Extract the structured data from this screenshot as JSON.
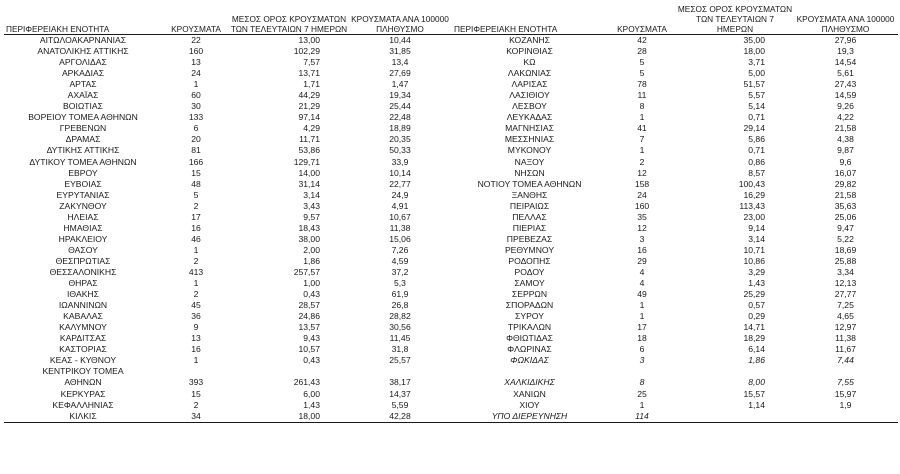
{
  "headers": {
    "region": "ΠΕΡΙΦΕΡΕΙΑΚΗ ΕΝΟΤΗΤΑ",
    "cases": "ΚΡΟΥΣΜΑΤΑ",
    "avg": "ΜΕΣΟΣ ΟΡΟΣ ΚΡΟΥΣΜΑΤΩΝ ΤΩΝ ΤΕΛΕΥΤΑΙΩΝ 7 ΗΜΕΡΩΝ",
    "per100k": "ΚΡΟΥΣΜΑΤΑ ΑΝΑ 100000 ΠΛΗΘΥΣΜΟ"
  },
  "left_rows": [
    {
      "name": "ΑΙΤΩΛΟΑΚΑΡΝΑΝΙΑΣ",
      "cases": "22",
      "avg": "13,00",
      "per100k": "10,44"
    },
    {
      "name": "ΑΝΑΤΟΛΙΚΗΣ ΑΤΤΙΚΗΣ",
      "cases": "160",
      "avg": "102,29",
      "per100k": "31,85"
    },
    {
      "name": "ΑΡΓΟΛΙΔΑΣ",
      "cases": "13",
      "avg": "7,57",
      "per100k": "13,4"
    },
    {
      "name": "ΑΡΚΑΔΙΑΣ",
      "cases": "24",
      "avg": "13,71",
      "per100k": "27,69"
    },
    {
      "name": "ΑΡΤΑΣ",
      "cases": "1",
      "avg": "1,71",
      "per100k": "1,47"
    },
    {
      "name": "ΑΧΑΪΑΣ",
      "cases": "60",
      "avg": "44,29",
      "per100k": "19,34"
    },
    {
      "name": "ΒΟΙΩΤΙΑΣ",
      "cases": "30",
      "avg": "21,29",
      "per100k": "25,44"
    },
    {
      "name": "ΒΟΡΕΙΟΥ ΤΟΜΕΑ ΑΘΗΝΩΝ",
      "cases": "133",
      "avg": "97,14",
      "per100k": "22,48"
    },
    {
      "name": "ΓΡΕΒΕΝΩΝ",
      "cases": "6",
      "avg": "4,29",
      "per100k": "18,89"
    },
    {
      "name": "ΔΡΑΜΑΣ",
      "cases": "20",
      "avg": "11,71",
      "per100k": "20,35"
    },
    {
      "name": "ΔΥΤΙΚΗΣ ΑΤΤΙΚΗΣ",
      "cases": "81",
      "avg": "53,86",
      "per100k": "50,33"
    },
    {
      "name": "ΔΥΤΙΚΟΥ ΤΟΜΕΑ ΑΘΗΝΩΝ",
      "cases": "166",
      "avg": "129,71",
      "per100k": "33,9"
    },
    {
      "name": "ΕΒΡΟΥ",
      "cases": "15",
      "avg": "14,00",
      "per100k": "10,14"
    },
    {
      "name": "ΕΥΒΟΙΑΣ",
      "cases": "48",
      "avg": "31,14",
      "per100k": "22,77"
    },
    {
      "name": "ΕΥΡΥΤΑΝΙΑΣ",
      "cases": "5",
      "avg": "3,14",
      "per100k": "24,9"
    },
    {
      "name": "ΖΑΚΥΝΘΟΥ",
      "cases": "2",
      "avg": "3,43",
      "per100k": "4,91"
    },
    {
      "name": "ΗΛΕΙΑΣ",
      "cases": "17",
      "avg": "9,57",
      "per100k": "10,67"
    },
    {
      "name": "ΗΜΑΘΙΑΣ",
      "cases": "16",
      "avg": "18,43",
      "per100k": "11,38"
    },
    {
      "name": "ΗΡΑΚΛΕΙΟΥ",
      "cases": "46",
      "avg": "38,00",
      "per100k": "15,06"
    },
    {
      "name": "ΘΑΣΟΥ",
      "cases": "1",
      "avg": "2,00",
      "per100k": "7,26"
    },
    {
      "name": "ΘΕΣΠΡΩΤΙΑΣ",
      "cases": "2",
      "avg": "1,86",
      "per100k": "4,59"
    },
    {
      "name": "ΘΕΣΣΑΛΟΝΙΚΗΣ",
      "cases": "413",
      "avg": "257,57",
      "per100k": "37,2"
    },
    {
      "name": "ΘΗΡΑΣ",
      "cases": "1",
      "avg": "1,00",
      "per100k": "5,3"
    },
    {
      "name": "ΙΘΑΚΗΣ",
      "cases": "2",
      "avg": "0,43",
      "per100k": "61,9"
    },
    {
      "name": "ΙΩΑΝΝΙΝΩΝ",
      "cases": "45",
      "avg": "28,57",
      "per100k": "26,8"
    },
    {
      "name": "ΚΑΒΑΛΑΣ",
      "cases": "36",
      "avg": "24,86",
      "per100k": "28,82"
    },
    {
      "name": "ΚΑΛΥΜΝΟΥ",
      "cases": "9",
      "avg": "13,57",
      "per100k": "30,56"
    },
    {
      "name": "ΚΑΡΔΙΤΣΑΣ",
      "cases": "13",
      "avg": "9,43",
      "per100k": "11,45"
    },
    {
      "name": "ΚΑΣΤΟΡΙΑΣ",
      "cases": "16",
      "avg": "10,57",
      "per100k": "31,8"
    },
    {
      "name": "ΚΕΑΣ - ΚΥΘΝΟΥ",
      "cases": "1",
      "avg": "0,43",
      "per100k": "25,57"
    },
    {
      "name": "ΚΕΝΤΡΙΚΟΥ ΤΟΜΕΑ",
      "cases": "",
      "avg": "",
      "per100k": ""
    },
    {
      "name": "ΑΘΗΝΩΝ",
      "cases": "393",
      "avg": "261,43",
      "per100k": "38,17"
    },
    {
      "name": "ΚΕΡΚΥΡΑΣ",
      "cases": "15",
      "avg": "6,00",
      "per100k": "14,37"
    },
    {
      "name": "ΚΕΦΑΛΛΗΝΙΑΣ",
      "cases": "2",
      "avg": "1,43",
      "per100k": "5,59"
    },
    {
      "name": "ΚΙΛΚΙΣ",
      "cases": "34",
      "avg": "18,00",
      "per100k": "42,28"
    }
  ],
  "right_rows": [
    {
      "name": "ΚΟΖΑΝΗΣ",
      "cases": "42",
      "avg": "35,00",
      "per100k": "27,96"
    },
    {
      "name": "ΚΟΡΙΝΘΙΑΣ",
      "cases": "28",
      "avg": "18,00",
      "per100k": "19,3"
    },
    {
      "name": "ΚΩ",
      "cases": "5",
      "avg": "3,71",
      "per100k": "14,54"
    },
    {
      "name": "ΛΑΚΩΝΙΑΣ",
      "cases": "5",
      "avg": "5,00",
      "per100k": "5,61"
    },
    {
      "name": "ΛΑΡΙΣΑΣ",
      "cases": "78",
      "avg": "51,57",
      "per100k": "27,43"
    },
    {
      "name": "ΛΑΣΙΘΙΟΥ",
      "cases": "11",
      "avg": "5,57",
      "per100k": "14,59"
    },
    {
      "name": "ΛΕΣΒΟΥ",
      "cases": "8",
      "avg": "5,14",
      "per100k": "9,26"
    },
    {
      "name": "ΛΕΥΚΑΔΑΣ",
      "cases": "1",
      "avg": "0,71",
      "per100k": "4,22"
    },
    {
      "name": "ΜΑΓΝΗΣΙΑΣ",
      "cases": "41",
      "avg": "29,14",
      "per100k": "21,58"
    },
    {
      "name": "ΜΕΣΣΗΝΙΑΣ",
      "cases": "7",
      "avg": "5,86",
      "per100k": "4,38"
    },
    {
      "name": "ΜΥΚΟΝΟΥ",
      "cases": "1",
      "avg": "0,71",
      "per100k": "9,87"
    },
    {
      "name": "ΝΑΞΟΥ",
      "cases": "2",
      "avg": "0,86",
      "per100k": "9,6"
    },
    {
      "name": "ΝΗΣΩΝ",
      "cases": "12",
      "avg": "8,57",
      "per100k": "16,07"
    },
    {
      "name": "ΝΟΤΙΟΥ ΤΟΜΕΑ ΑΘΗΝΩΝ",
      "cases": "158",
      "avg": "100,43",
      "per100k": "29,82"
    },
    {
      "name": "ΞΑΝΘΗΣ",
      "cases": "24",
      "avg": "16,29",
      "per100k": "21,58"
    },
    {
      "name": "ΠΕΙΡΑΙΩΣ",
      "cases": "160",
      "avg": "113,43",
      "per100k": "35,63"
    },
    {
      "name": "ΠΕΛΛΑΣ",
      "cases": "35",
      "avg": "23,00",
      "per100k": "25,06"
    },
    {
      "name": "ΠΙΕΡΙΑΣ",
      "cases": "12",
      "avg": "9,14",
      "per100k": "9,47"
    },
    {
      "name": "ΠΡΕΒΕΖΑΣ",
      "cases": "3",
      "avg": "3,14",
      "per100k": "5,22"
    },
    {
      "name": "ΡΕΘΥΜΝΟΥ",
      "cases": "16",
      "avg": "10,71",
      "per100k": "18,69"
    },
    {
      "name": "ΡΟΔΟΠΗΣ",
      "cases": "29",
      "avg": "10,86",
      "per100k": "25,88"
    },
    {
      "name": "ΡΟΔΟΥ",
      "cases": "4",
      "avg": "3,29",
      "per100k": "3,34"
    },
    {
      "name": "ΣΑΜΟΥ",
      "cases": "4",
      "avg": "1,43",
      "per100k": "12,13"
    },
    {
      "name": "ΣΕΡΡΩΝ",
      "cases": "49",
      "avg": "25,29",
      "per100k": "27,77"
    },
    {
      "name": "ΣΠΟΡΑΔΩΝ",
      "cases": "1",
      "avg": "0,57",
      "per100k": "7,25"
    },
    {
      "name": "ΣΥΡΟΥ",
      "cases": "1",
      "avg": "0,29",
      "per100k": "4,65"
    },
    {
      "name": "ΤΡΙΚΑΛΩΝ",
      "cases": "17",
      "avg": "14,71",
      "per100k": "12,97"
    },
    {
      "name": "ΦΘΙΩΤΙΔΑΣ",
      "cases": "18",
      "avg": "18,29",
      "per100k": "11,38"
    },
    {
      "name": "ΦΛΩΡΙΝΑΣ",
      "cases": "6",
      "avg": "6,14",
      "per100k": "11,67"
    },
    {
      "name": "ΦΩΚΙΔΑΣ",
      "cases": "3",
      "avg": "1,86",
      "per100k": "7,44",
      "italic": true
    },
    {
      "name": "",
      "cases": "",
      "avg": "",
      "per100k": ""
    },
    {
      "name": "ΧΑΛΚΙΔΙΚΗΣ",
      "cases": "8",
      "avg": "8,00",
      "per100k": "7,55",
      "italic": true
    },
    {
      "name": "ΧΑΝΙΩΝ",
      "cases": "25",
      "avg": "15,57",
      "per100k": "15,97"
    },
    {
      "name": "ΧΙΟΥ",
      "cases": "1",
      "avg": "1,14",
      "per100k": "1,9"
    },
    {
      "name": "ΥΠΟ ΔΙΕΡΕΥΝΗΣΗ",
      "cases": "114",
      "avg": "",
      "per100k": "",
      "italic": true
    }
  ]
}
